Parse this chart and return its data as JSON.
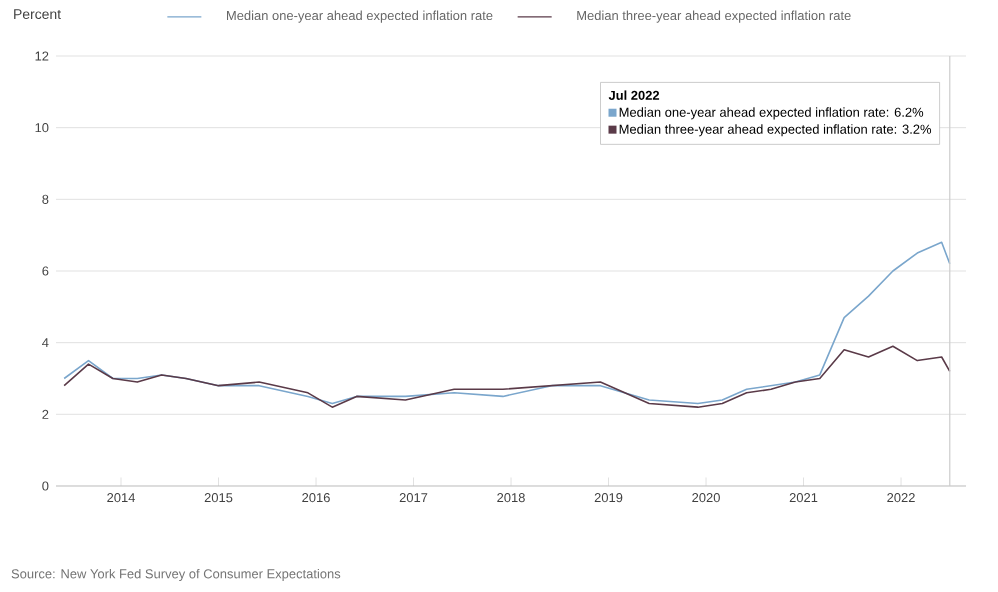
{
  "chart_data": {
    "type": "line",
    "ylabel": "Percent",
    "x": [
      "2013-06",
      "2013-09",
      "2013-12",
      "2014-03",
      "2014-06",
      "2014-09",
      "2015-01",
      "2015-06",
      "2015-12",
      "2016-03",
      "2016-06",
      "2016-12",
      "2017-06",
      "2017-12",
      "2018-06",
      "2018-12",
      "2019-06",
      "2019-12",
      "2020-03",
      "2020-06",
      "2020-09",
      "2020-12",
      "2021-03",
      "2021-06",
      "2021-09",
      "2021-12",
      "2022-03",
      "2022-06",
      "2022-07"
    ],
    "series": [
      {
        "name": "Median one-year ahead expected inflation rate",
        "color": "#7aa6cc",
        "values": [
          3.0,
          3.5,
          3.0,
          3.0,
          3.1,
          3.0,
          2.8,
          2.8,
          2.5,
          2.3,
          2.5,
          2.5,
          2.6,
          2.5,
          2.8,
          2.8,
          2.4,
          2.3,
          2.4,
          2.7,
          2.8,
          2.9,
          3.1,
          4.7,
          5.3,
          6.0,
          6.5,
          6.8,
          6.2
        ]
      },
      {
        "name": "Median three-year ahead expected inflation rate",
        "color": "#5a3a48",
        "values": [
          2.8,
          3.4,
          3.0,
          2.9,
          3.1,
          3.0,
          2.8,
          2.9,
          2.6,
          2.2,
          2.5,
          2.4,
          2.7,
          2.7,
          2.8,
          2.9,
          2.3,
          2.2,
          2.3,
          2.6,
          2.7,
          2.9,
          3.0,
          3.8,
          3.6,
          3.9,
          3.5,
          3.6,
          3.2
        ]
      }
    ],
    "xlim": [
      "2013-05",
      "2022-09"
    ],
    "xticks": [
      "2014",
      "2015",
      "2016",
      "2017",
      "2018",
      "2019",
      "2020",
      "2021",
      "2022"
    ],
    "ylim": [
      0,
      12
    ],
    "yticks": [
      0,
      2,
      4,
      6,
      8,
      10,
      12
    ],
    "grid": "y",
    "legend": "top",
    "line_style": "solid",
    "ref_lines": [
      {
        "axis": "x",
        "value": "2022-07",
        "color": "#cccccc"
      }
    ],
    "annotations": [
      "Jul 2022",
      "Median one-year ahead expected inflation rate: 6.2%",
      "Median three-year ahead expected inflation rate: 3.2%",
      "Source: New York Fed Survey of Consumer Expectations"
    ]
  }
}
